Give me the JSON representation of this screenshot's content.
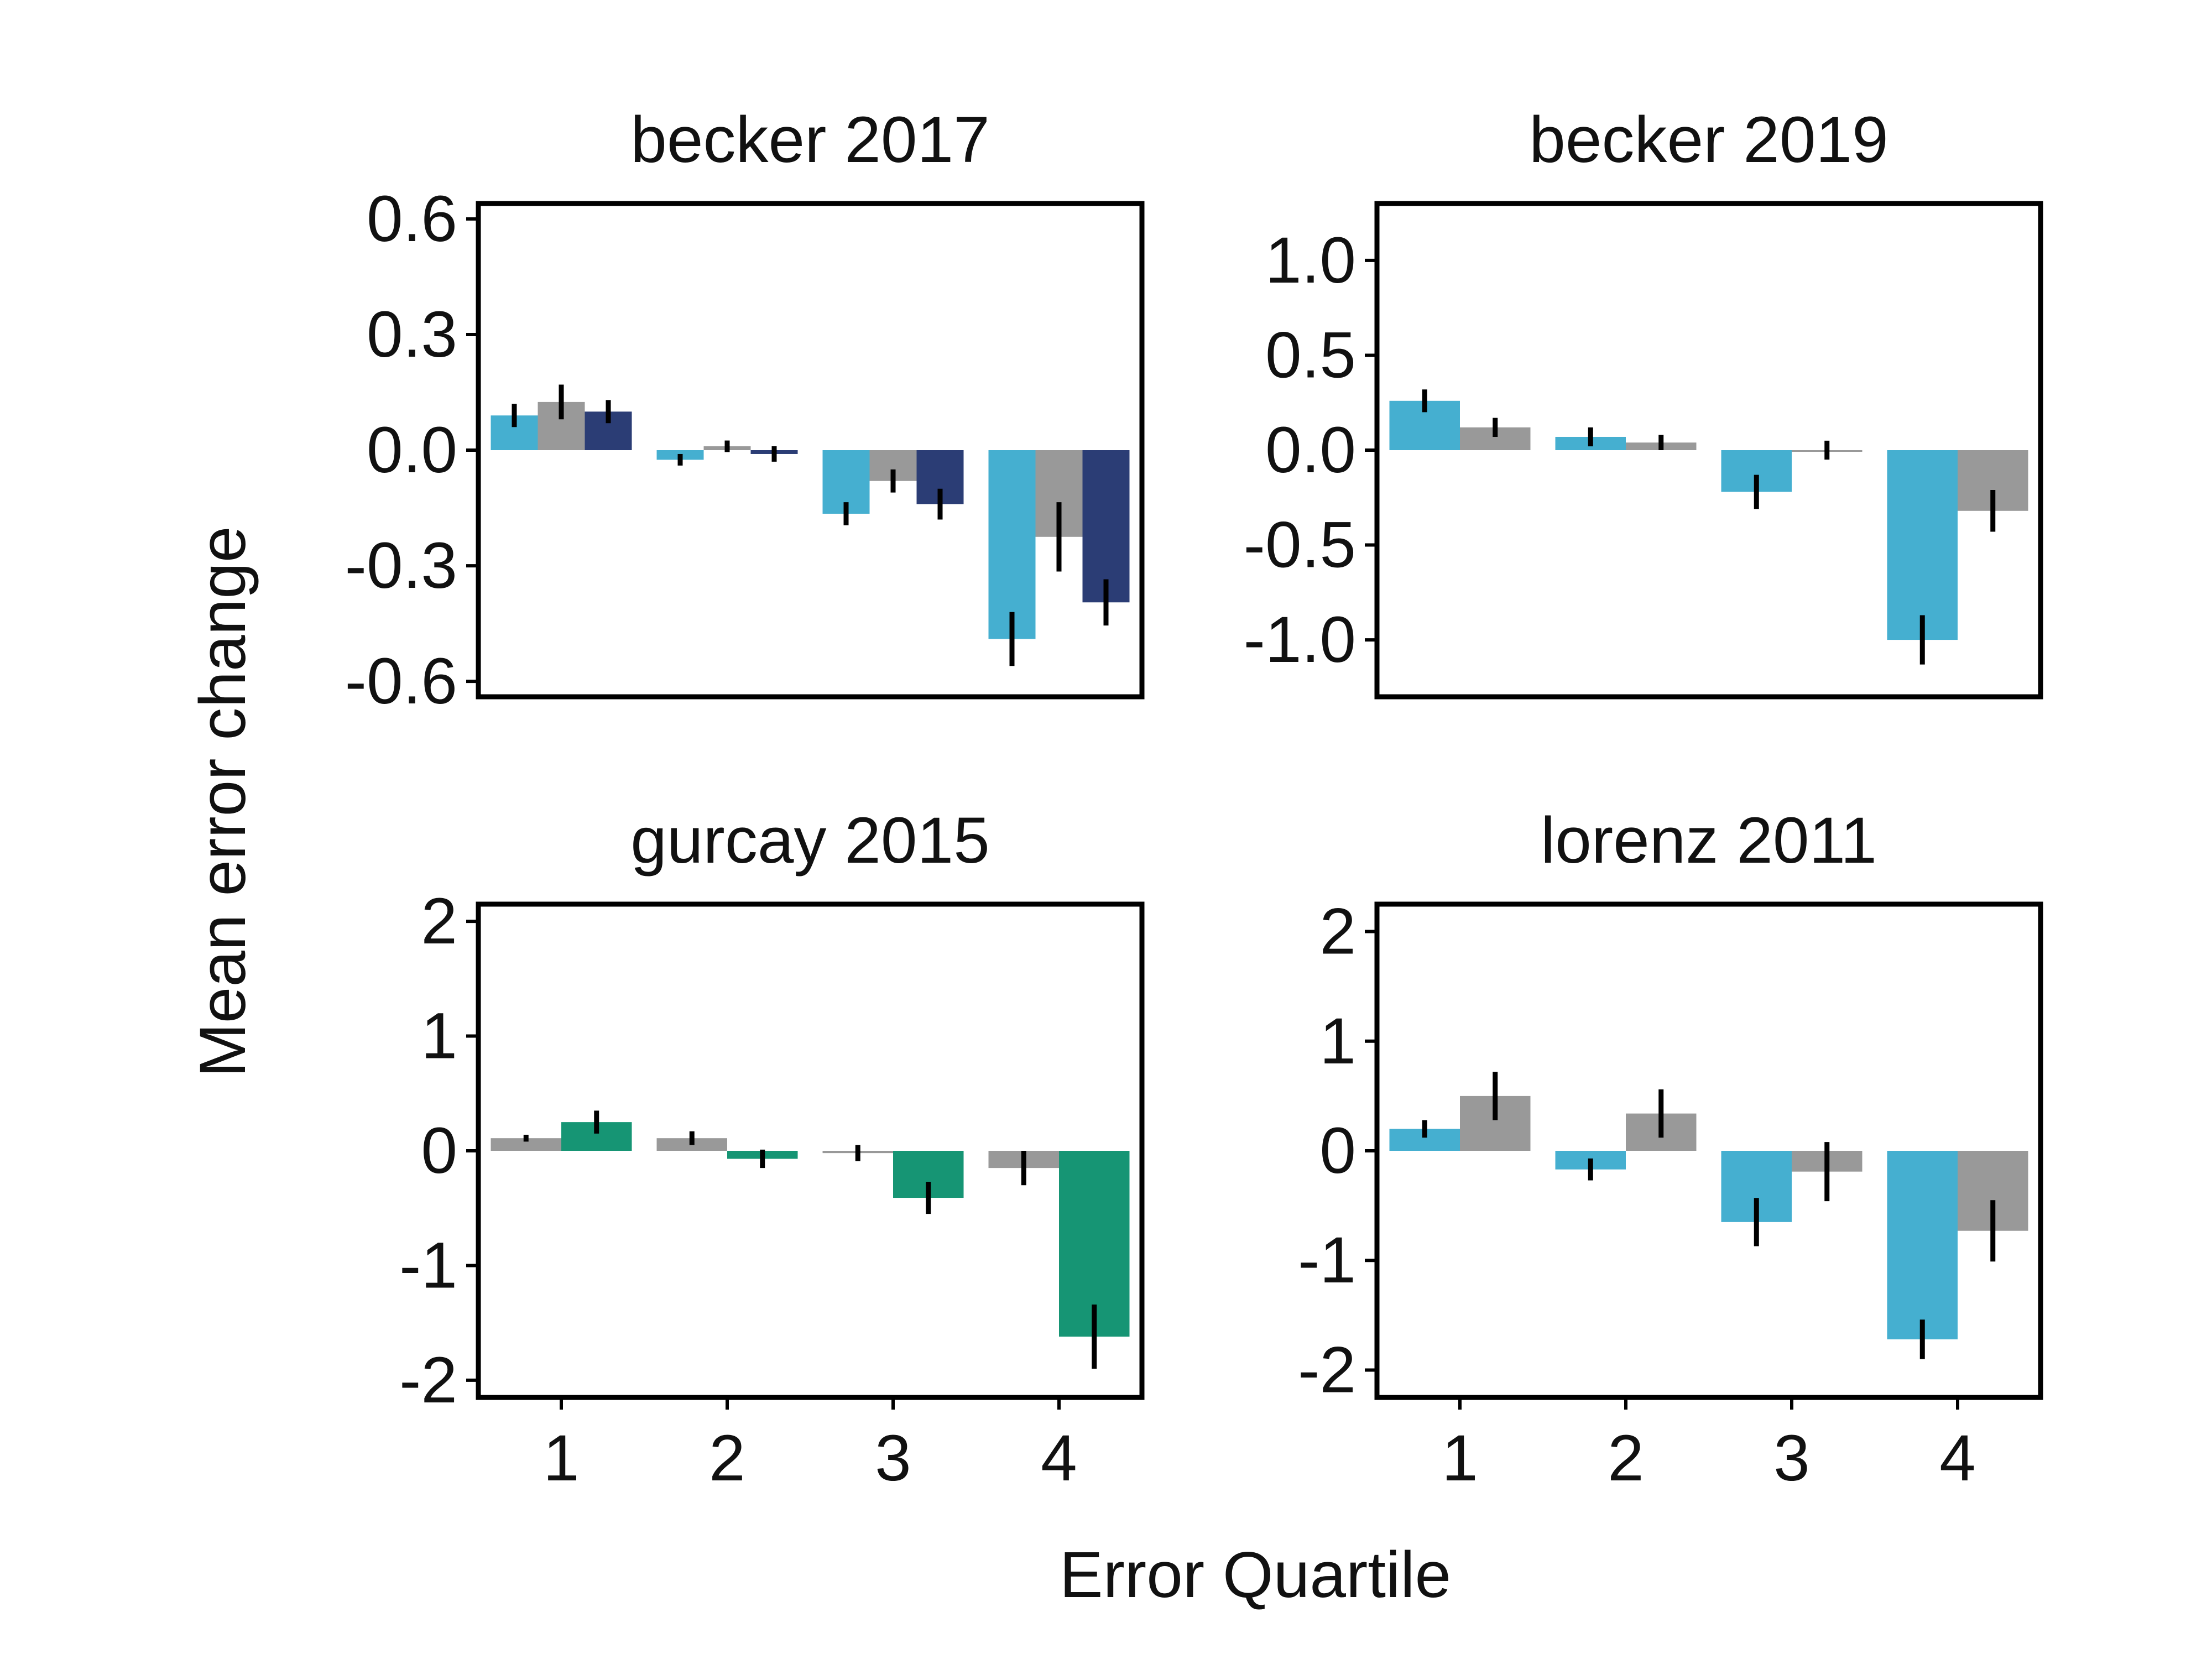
{
  "figure": {
    "xlabel": "Error Quartile",
    "ylabel": "Mean error change"
  },
  "chart_data": [
    {
      "type": "bar",
      "title": "becker 2017",
      "categories": [
        "1",
        "2",
        "3",
        "4"
      ],
      "ylim": [
        -0.64,
        0.64
      ],
      "yticks": [
        0.6,
        0.3,
        0.0,
        -0.3,
        -0.6
      ],
      "ytick_labels": [
        "0.6",
        "0.3",
        "0.0",
        "-0.3",
        "-0.6"
      ],
      "show_xticks": false,
      "series": [
        {
          "color": "#45afd0",
          "values": [
            0.09,
            -0.025,
            -0.165,
            -0.49
          ],
          "errors": [
            0.03,
            0.015,
            0.03,
            0.07
          ]
        },
        {
          "color": "#999999",
          "values": [
            0.125,
            0.01,
            -0.08,
            -0.225
          ],
          "errors": [
            0.045,
            0.015,
            0.03,
            0.09
          ]
        },
        {
          "color": "#2b3d75",
          "values": [
            0.1,
            -0.01,
            -0.14,
            -0.395
          ],
          "errors": [
            0.03,
            0.02,
            0.04,
            0.06
          ]
        }
      ]
    },
    {
      "type": "bar",
      "title": "becker 2019",
      "categories": [
        "1",
        "2",
        "3",
        "4"
      ],
      "ylim": [
        -1.3,
        1.3
      ],
      "yticks": [
        1.0,
        0.5,
        0.0,
        -0.5,
        -1.0
      ],
      "ytick_labels": [
        "1.0",
        "0.5",
        "0.0",
        "-0.5",
        "-1.0"
      ],
      "show_xticks": false,
      "series": [
        {
          "color": "#45afd0",
          "values": [
            0.26,
            0.07,
            -0.22,
            -1.0
          ],
          "errors": [
            0.06,
            0.05,
            0.09,
            0.13
          ]
        },
        {
          "color": "#999999",
          "values": [
            0.12,
            0.04,
            0.0,
            -0.32
          ],
          "errors": [
            0.05,
            0.04,
            0.05,
            0.11
          ]
        }
      ]
    },
    {
      "type": "bar",
      "title": "gurcay 2015",
      "categories": [
        "1",
        "2",
        "3",
        "4"
      ],
      "ylim": [
        -2.15,
        2.15
      ],
      "yticks": [
        2,
        1,
        0,
        -1,
        -2
      ],
      "ytick_labels": [
        "2",
        "1",
        "0",
        "-1",
        "-2"
      ],
      "show_xticks": true,
      "series": [
        {
          "color": "#999999",
          "values": [
            0.11,
            0.11,
            -0.02,
            -0.15
          ],
          "errors": [
            0.03,
            0.06,
            0.07,
            0.15
          ]
        },
        {
          "color": "#169574",
          "values": [
            0.25,
            -0.07,
            -0.41,
            -1.62
          ],
          "errors": [
            0.1,
            0.08,
            0.14,
            0.28
          ]
        }
      ]
    },
    {
      "type": "bar",
      "title": "lorenz 2011",
      "categories": [
        "1",
        "2",
        "3",
        "4"
      ],
      "ylim": [
        -2.25,
        2.25
      ],
      "yticks": [
        2,
        1,
        0,
        -1,
        -2
      ],
      "ytick_labels": [
        "2",
        "1",
        "0",
        "-1",
        "-2"
      ],
      "show_xticks": true,
      "series": [
        {
          "color": "#45afd0",
          "values": [
            0.2,
            -0.17,
            -0.65,
            -1.72
          ],
          "errors": [
            0.08,
            0.1,
            0.22,
            0.18
          ]
        },
        {
          "color": "#999999",
          "values": [
            0.5,
            0.34,
            -0.19,
            -0.73
          ],
          "errors": [
            0.22,
            0.22,
            0.27,
            0.28
          ]
        }
      ]
    }
  ]
}
